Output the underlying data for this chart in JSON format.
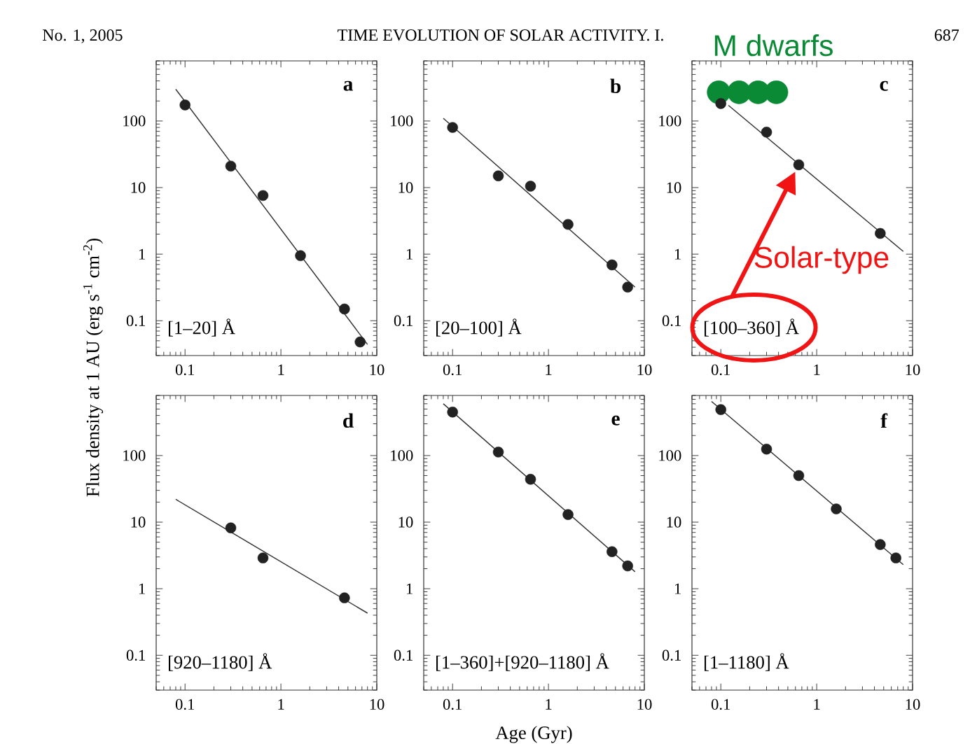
{
  "chart_data": [
    {
      "type": "scatter",
      "title": "a",
      "subtitle": "[1–20] Å",
      "ylabel": "Flux density at 1 AU (erg s$^{-1}$ cm$^{-2}$)",
      "annotations": [
        "No. 1, 2005",
        "TIME EVOLUTION OF SOLAR ACTIVITY. I.",
        "687"
      ],
      "x": [
        0.1,
        0.3,
        0.65,
        1.6,
        4.6,
        6.7
      ],
      "series": [
        {
          "type": "line",
          "color": "#333333",
          "x": [
            0.08,
            8
          ],
          "values": [
            300,
            0.044
          ]
        },
        {
          "color": "#222222",
          "marker": "circle",
          "values": [
            174,
            21,
            7.6,
            0.95,
            0.15,
            0.048
          ]
        }
      ],
      "log": "xy",
      "xlim": [
        0.05,
        10
      ],
      "ylim": [
        0.03,
        800
      ],
      "xticks": [
        0.1,
        1,
        10
      ],
      "yticks": [
        0.1,
        1,
        10,
        100
      ]
    },
    {
      "type": "scatter",
      "title": "b",
      "subtitle": "[20–100] Å",
      "x": [
        0.1,
        0.3,
        0.65,
        1.6,
        4.6,
        6.7
      ],
      "series": [
        {
          "type": "line",
          "color": "#333333",
          "x": [
            0.08,
            8
          ],
          "values": [
            110,
            0.32
          ]
        },
        {
          "color": "#222222",
          "marker": "circle",
          "values": [
            80,
            15,
            10.5,
            2.8,
            0.69,
            0.32
          ]
        }
      ],
      "log": "xy",
      "xlim": [
        0.05,
        10
      ],
      "ylim": [
        0.03,
        800
      ],
      "xticks": [
        0.1,
        1,
        10
      ],
      "yticks": [
        0.1,
        1,
        10,
        100
      ]
    },
    {
      "type": "scatter",
      "title": "c",
      "subtitle": "[100–360] Å",
      "annotations": [
        {
          "text": "Solar-type",
          "x": 0.65,
          "y": 22
        }
      ],
      "x": [
        0.1,
        0.3,
        0.65,
        4.6
      ],
      "series": [
        {
          "name": "M dwarfs",
          "color": "#0b8a35",
          "marker": "circle",
          "x": [
            0.095,
            0.155,
            0.245,
            0.38
          ],
          "values": [
            270,
            270,
            270,
            270
          ]
        },
        {
          "type": "line",
          "color": "#333333",
          "x": [
            0.12,
            8
          ],
          "values": [
            172,
            1.1
          ]
        },
        {
          "color": "#222222",
          "marker": "circle",
          "values": [
            183,
            68,
            22,
            2.05
          ]
        }
      ],
      "log": "xy",
      "xlim": [
        0.05,
        10
      ],
      "ylim": [
        0.03,
        800
      ],
      "xticks": [
        0.1,
        1,
        10
      ],
      "yticks": [
        0.1,
        1,
        10,
        100
      ]
    },
    {
      "type": "scatter",
      "title": "d",
      "subtitle": "[920–1180] Å",
      "x": [
        0.3,
        0.65,
        4.6
      ],
      "series": [
        {
          "type": "line",
          "color": "#333333",
          "x": [
            0.08,
            8
          ],
          "values": [
            22,
            0.43
          ]
        },
        {
          "color": "#222222",
          "marker": "circle",
          "values": [
            8.2,
            2.9,
            0.73
          ]
        }
      ],
      "log": "xy",
      "xlim": [
        0.05,
        10
      ],
      "ylim": [
        0.03,
        800
      ],
      "xticks": [
        0.1,
        1,
        10
      ],
      "yticks": [
        0.1,
        1,
        10,
        100
      ]
    },
    {
      "type": "scatter",
      "title": "e",
      "subtitle": "[1–360]+[920–1180] Å",
      "xlabel": "Age (Gyr)",
      "x": [
        0.1,
        0.3,
        0.65,
        1.6,
        4.6,
        6.7
      ],
      "series": [
        {
          "type": "line",
          "color": "#333333",
          "x": [
            0.08,
            8
          ],
          "values": [
            600,
            1.8
          ]
        },
        {
          "color": "#222222",
          "marker": "circle",
          "values": [
            450,
            113,
            44,
            13,
            3.6,
            2.2
          ]
        }
      ],
      "log": "xy",
      "xlim": [
        0.05,
        10
      ],
      "ylim": [
        0.03,
        800
      ],
      "xticks": [
        0.1,
        1,
        10
      ],
      "yticks": [
        0.1,
        1,
        10,
        100
      ]
    },
    {
      "type": "scatter",
      "title": "f",
      "subtitle": "[1–1180] Å",
      "x": [
        0.1,
        0.3,
        0.65,
        1.6,
        4.6,
        6.7
      ],
      "series": [
        {
          "type": "line",
          "color": "#333333",
          "x": [
            0.08,
            8
          ],
          "values": [
            650,
            2.3
          ]
        },
        {
          "color": "#222222",
          "marker": "circle",
          "values": [
            490,
            125,
            50,
            15.8,
            4.6,
            2.9
          ]
        }
      ],
      "log": "xy",
      "xlim": [
        0.05,
        10
      ],
      "ylim": [
        0.03,
        800
      ],
      "xticks": [
        0.1,
        1,
        10
      ],
      "yticks": [
        0.1,
        1,
        10,
        100
      ]
    }
  ]
}
